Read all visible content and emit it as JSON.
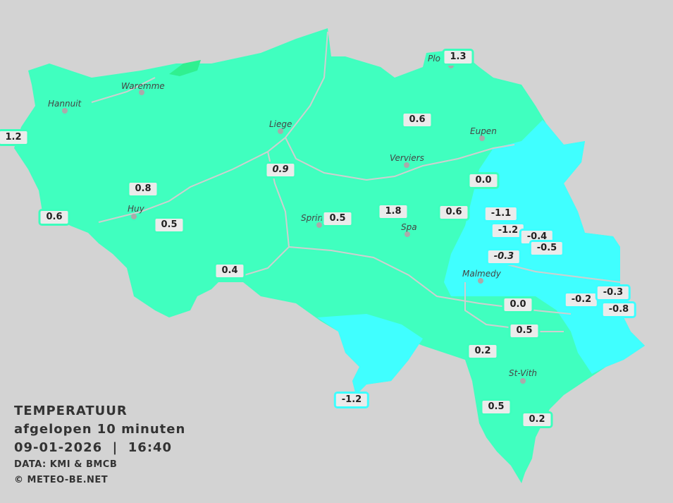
{
  "colors": {
    "background": "#d3d3d3",
    "above_zero": "#40ffbf",
    "below_zero": "#40ffff",
    "label_bg": "#ebebeb"
  },
  "legend": {
    "title": "TEMPERATUUR",
    "subtitle": "afgelopen 10 minuten",
    "datetime": "09-01-2026  |  16:40",
    "source": "DATA: KMI & BMCB",
    "copyright": "© METEO-BE.NET"
  },
  "cities": [
    "Waremme",
    "Hannuit",
    "Liege",
    "Eupen",
    "Verviers",
    "Huy",
    "Sprimont",
    "Spa",
    "Malmedy",
    "St-Vith",
    "Plombières"
  ],
  "city_display": {
    "Sprimont": "Sprin",
    "Plombières": "Plo"
  },
  "stations": [
    {
      "value": "1.3"
    },
    {
      "value": "0.6"
    },
    {
      "value": "1.2"
    },
    {
      "value": "0.9",
      "italic": true
    },
    {
      "value": "0.0"
    },
    {
      "value": "0.8"
    },
    {
      "value": "0.6"
    },
    {
      "value": "0.5"
    },
    {
      "value": "0.5"
    },
    {
      "value": "1.8"
    },
    {
      "value": "0.6"
    },
    {
      "value": "-1.1"
    },
    {
      "value": "-1.2"
    },
    {
      "value": "-0.4"
    },
    {
      "value": "-0.5"
    },
    {
      "value": "-0.3",
      "italic": true
    },
    {
      "value": "0.4"
    },
    {
      "value": "-0.2"
    },
    {
      "value": "-0.3"
    },
    {
      "value": "-0.8"
    },
    {
      "value": "0.0"
    },
    {
      "value": "0.5"
    },
    {
      "value": "0.2"
    },
    {
      "value": "-1.2"
    },
    {
      "value": "0.5"
    },
    {
      "value": "0.2"
    }
  ]
}
